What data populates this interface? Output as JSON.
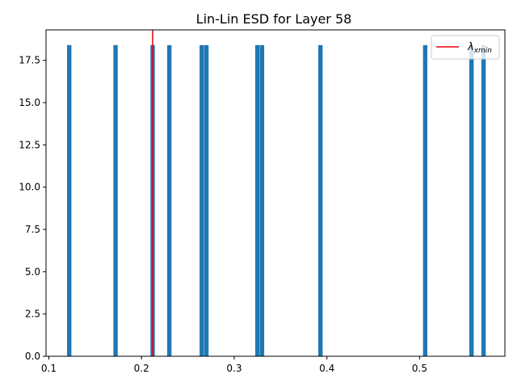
{
  "chart_data": {
    "type": "bar",
    "title": "Lin-Lin ESD for Layer 58",
    "xlabel": "",
    "ylabel": "",
    "xlim": [
      0.097,
      0.592
    ],
    "ylim": [
      0,
      19.3
    ],
    "bin_width": 0.0047,
    "bars": [
      {
        "x": 0.122,
        "value": 18.4
      },
      {
        "x": 0.172,
        "value": 18.4
      },
      {
        "x": 0.212,
        "value": 18.4
      },
      {
        "x": 0.23,
        "value": 18.4
      },
      {
        "x": 0.265,
        "value": 18.4
      },
      {
        "x": 0.27,
        "value": 18.4
      },
      {
        "x": 0.325,
        "value": 18.4
      },
      {
        "x": 0.33,
        "value": 18.4
      },
      {
        "x": 0.393,
        "value": 18.4
      },
      {
        "x": 0.506,
        "value": 18.4
      },
      {
        "x": 0.556,
        "value": 18.4
      },
      {
        "x": 0.569,
        "value": 18.4
      }
    ],
    "xticks": [
      0.1,
      0.2,
      0.3,
      0.4,
      0.5
    ],
    "xtick_labels": [
      "0.1",
      "0.2",
      "0.3",
      "0.4",
      "0.5"
    ],
    "yticks": [
      0,
      2.5,
      5,
      7.5,
      10,
      12.5,
      15,
      17.5
    ],
    "ytick_labels": [
      "0.0",
      "2.5",
      "5.0",
      "7.5",
      "10.0",
      "12.5",
      "15.0",
      "17.5"
    ],
    "vline": {
      "x": 0.212,
      "name": "λxmin"
    },
    "legend": {
      "position": "top-right",
      "symbol": "λ",
      "subscript": "xmin"
    },
    "colors": {
      "bar": "#1f77b4",
      "vline": "#e8000b",
      "axis": "#000000"
    },
    "grid": false
  }
}
